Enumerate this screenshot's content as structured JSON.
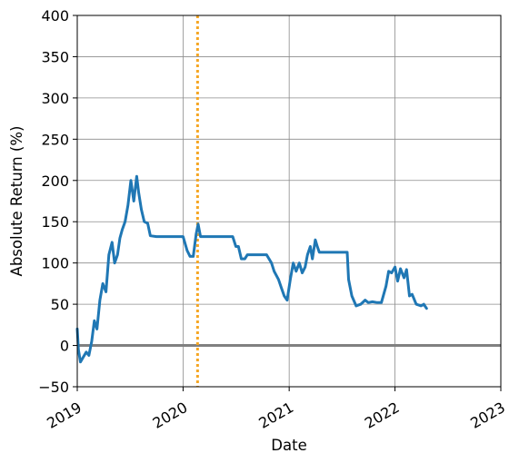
{
  "chart_data": {
    "type": "line",
    "title": "",
    "xlabel": "Date",
    "ylabel": "Absolute Return (%)",
    "x_ticks": [
      "2019",
      "2020",
      "2021",
      "2022",
      "2023"
    ],
    "y_ticks": [
      "−50",
      "0",
      "50",
      "100",
      "150",
      "200",
      "250",
      "300",
      "350",
      "400"
    ],
    "xlim": [
      "2019-01-01",
      "2023-01-01"
    ],
    "ylim": [
      -50,
      400
    ],
    "grid": true,
    "legend": "none",
    "reference_lines": [
      {
        "orientation": "horizontal",
        "value": 0,
        "style": "solid",
        "color": "#808080"
      },
      {
        "orientation": "vertical",
        "value": "2020-02-20",
        "style": "dotted",
        "color": "#f5a623"
      }
    ],
    "series": [
      {
        "color": "#1f77b4",
        "points": [
          [
            "2019-01-01",
            20
          ],
          [
            "2019-01-05",
            -5
          ],
          [
            "2019-01-12",
            -20
          ],
          [
            "2019-01-20",
            -15
          ],
          [
            "2019-02-01",
            -8
          ],
          [
            "2019-02-10",
            -12
          ],
          [
            "2019-02-20",
            5
          ],
          [
            "2019-03-01",
            30
          ],
          [
            "2019-03-10",
            20
          ],
          [
            "2019-03-20",
            55
          ],
          [
            "2019-03-30",
            75
          ],
          [
            "2019-04-10",
            65
          ],
          [
            "2019-04-20",
            110
          ],
          [
            "2019-05-01",
            125
          ],
          [
            "2019-05-10",
            100
          ],
          [
            "2019-05-20",
            110
          ],
          [
            "2019-05-28",
            130
          ],
          [
            "2019-06-05",
            140
          ],
          [
            "2019-06-15",
            150
          ],
          [
            "2019-06-25",
            170
          ],
          [
            "2019-07-05",
            200
          ],
          [
            "2019-07-15",
            175
          ],
          [
            "2019-07-25",
            205
          ],
          [
            "2019-08-01",
            185
          ],
          [
            "2019-08-10",
            165
          ],
          [
            "2019-08-20",
            150
          ],
          [
            "2019-09-01",
            148
          ],
          [
            "2019-09-10",
            133
          ],
          [
            "2019-10-01",
            132
          ],
          [
            "2019-11-01",
            132
          ],
          [
            "2019-12-01",
            132
          ],
          [
            "2019-12-20",
            132
          ],
          [
            "2020-01-01",
            132
          ],
          [
            "2020-01-15",
            115
          ],
          [
            "2020-01-25",
            108
          ],
          [
            "2020-02-05",
            108
          ],
          [
            "2020-02-15",
            135
          ],
          [
            "2020-02-22",
            147
          ],
          [
            "2020-03-01",
            132
          ],
          [
            "2020-04-01",
            132
          ],
          [
            "2020-05-01",
            132
          ],
          [
            "2020-06-01",
            132
          ],
          [
            "2020-06-20",
            132
          ],
          [
            "2020-07-01",
            120
          ],
          [
            "2020-07-10",
            120
          ],
          [
            "2020-07-20",
            105
          ],
          [
            "2020-08-01",
            105
          ],
          [
            "2020-08-10",
            110
          ],
          [
            "2020-08-20",
            110
          ],
          [
            "2020-09-15",
            110
          ],
          [
            "2020-10-15",
            110
          ],
          [
            "2020-11-01",
            100
          ],
          [
            "2020-11-10",
            90
          ],
          [
            "2020-11-25",
            80
          ],
          [
            "2020-12-05",
            70
          ],
          [
            "2020-12-15",
            60
          ],
          [
            "2020-12-25",
            55
          ],
          [
            "2021-01-05",
            80
          ],
          [
            "2021-01-15",
            100
          ],
          [
            "2021-01-25",
            90
          ],
          [
            "2021-02-05",
            100
          ],
          [
            "2021-02-15",
            88
          ],
          [
            "2021-02-25",
            95
          ],
          [
            "2021-03-05",
            110
          ],
          [
            "2021-03-15",
            120
          ],
          [
            "2021-03-22",
            105
          ],
          [
            "2021-04-01",
            128
          ],
          [
            "2021-04-08",
            120
          ],
          [
            "2021-04-15",
            113
          ],
          [
            "2021-05-01",
            113
          ],
          [
            "2021-06-01",
            113
          ],
          [
            "2021-07-01",
            113
          ],
          [
            "2021-07-20",
            113
          ],
          [
            "2021-07-25",
            80
          ],
          [
            "2021-08-05",
            60
          ],
          [
            "2021-08-20",
            48
          ],
          [
            "2021-09-05",
            50
          ],
          [
            "2021-09-20",
            55
          ],
          [
            "2021-10-01",
            52
          ],
          [
            "2021-10-15",
            53
          ],
          [
            "2021-11-01",
            52
          ],
          [
            "2021-11-15",
            52
          ],
          [
            "2021-12-01",
            72
          ],
          [
            "2021-12-10",
            90
          ],
          [
            "2021-12-20",
            88
          ],
          [
            "2022-01-01",
            95
          ],
          [
            "2022-01-10",
            78
          ],
          [
            "2022-01-20",
            93
          ],
          [
            "2022-02-01",
            82
          ],
          [
            "2022-02-10",
            92
          ],
          [
            "2022-02-20",
            60
          ],
          [
            "2022-03-01",
            62
          ],
          [
            "2022-03-15",
            50
          ],
          [
            "2022-04-01",
            48
          ],
          [
            "2022-04-10",
            50
          ],
          [
            "2022-04-20",
            45
          ]
        ]
      }
    ]
  }
}
